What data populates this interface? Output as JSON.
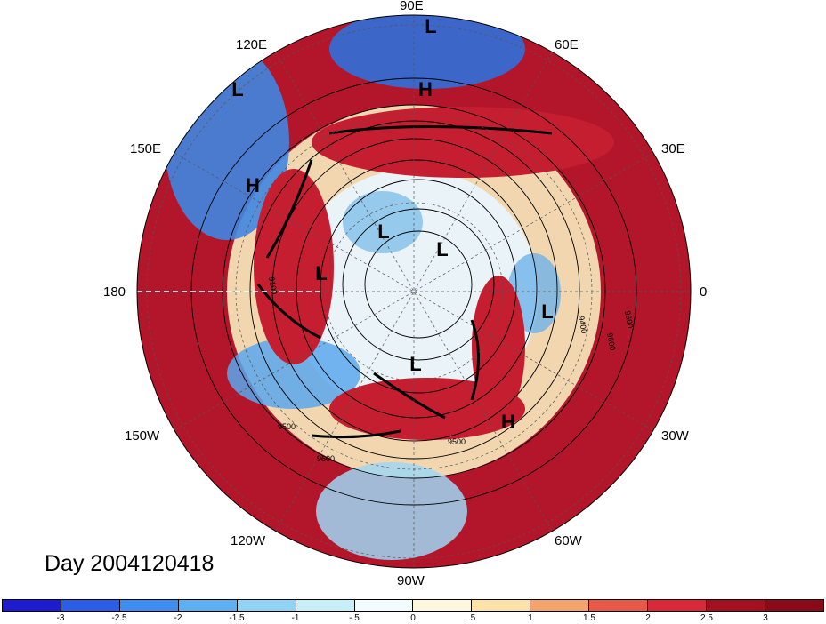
{
  "title": "Day 2004120418",
  "longitude_labels": {
    "lon_90e": "90E",
    "lon_60e": "60E",
    "lon_120e": "120E",
    "lon_30e": "30E",
    "lon_150e": "150E",
    "lon_0": "0",
    "lon_180": "180",
    "lon_150w": "150W",
    "lon_30w": "30W",
    "lon_120w": "120W",
    "lon_60w": "60W",
    "lon_90w": "90W"
  },
  "pressure_centers": [
    {
      "type": "L",
      "label": "L"
    },
    {
      "type": "L",
      "label": "L"
    },
    {
      "type": "H",
      "label": "H"
    },
    {
      "type": "H",
      "label": "H"
    },
    {
      "type": "L",
      "label": "L"
    },
    {
      "type": "L",
      "label": "L"
    },
    {
      "type": "L",
      "label": "L"
    },
    {
      "type": "L",
      "label": "L"
    },
    {
      "type": "L",
      "label": "L"
    },
    {
      "type": "H",
      "label": "H"
    }
  ],
  "contour_labels": [
    "9100",
    "9600",
    "9600",
    "9500",
    "9600",
    "9500",
    "9400"
  ],
  "colorbar": {
    "ticks": [
      "-3",
      "-2.5",
      "-2",
      "-1.5",
      "-1",
      "-.5",
      "0",
      ".5",
      "1",
      "1.5",
      "2",
      "2.5",
      "3"
    ],
    "colors": [
      "#1d1dcf",
      "#2b5ee6",
      "#3d8ef0",
      "#5db0f2",
      "#8fd4f5",
      "#c8eef8",
      "#f2fbfd",
      "#fdf7dc",
      "#fbe3a8",
      "#f4a36b",
      "#e85a47",
      "#d8283a",
      "#a50f22",
      "#8b0a18"
    ]
  }
}
